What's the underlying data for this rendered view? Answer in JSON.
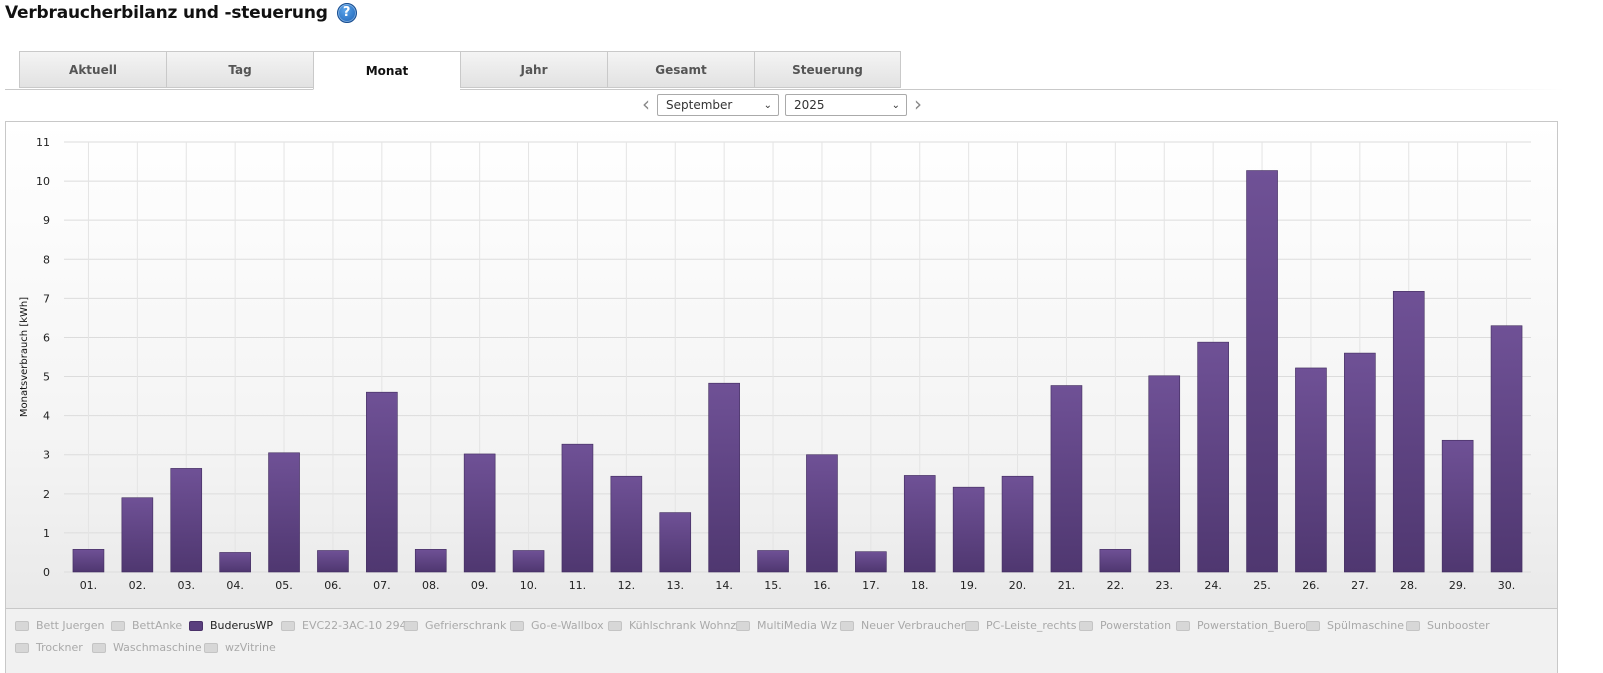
{
  "header": {
    "title": "Verbraucherbilanz und -steuerung",
    "help_symbol": "?"
  },
  "tabs": [
    {
      "label": "Aktuell",
      "active": false
    },
    {
      "label": "Tag",
      "active": false
    },
    {
      "label": "Monat",
      "active": true
    },
    {
      "label": "Jahr",
      "active": false
    },
    {
      "label": "Gesamt",
      "active": false
    },
    {
      "label": "Steuerung",
      "active": false
    }
  ],
  "period": {
    "prev_symbol": "‹",
    "next_symbol": "›",
    "month": "September",
    "year": "2025",
    "caret": "⌄"
  },
  "chart_data": {
    "type": "bar",
    "ylabel": "Monatsverbrauch [kWh]",
    "xlabel": "",
    "ylim": [
      0,
      11
    ],
    "y_ticks": [
      "0",
      "1",
      "2",
      "3",
      "4",
      "5",
      "6",
      "7",
      "8",
      "9",
      "10",
      "11"
    ],
    "grid": true,
    "bar_color": "#5a3f7e",
    "categories": [
      "01.",
      "02.",
      "03.",
      "04.",
      "05.",
      "06.",
      "07.",
      "08.",
      "09.",
      "10.",
      "11.",
      "12.",
      "13.",
      "14.",
      "15.",
      "16.",
      "17.",
      "18.",
      "19.",
      "20.",
      "21.",
      "22.",
      "23.",
      "24.",
      "25.",
      "26.",
      "27.",
      "28.",
      "29.",
      "30."
    ],
    "series": [
      {
        "name": "BuderusWP",
        "values": [
          0.58,
          1.9,
          2.65,
          0.5,
          3.05,
          0.55,
          4.6,
          0.58,
          3.02,
          0.55,
          3.27,
          2.45,
          1.52,
          4.83,
          0.55,
          3.0,
          0.52,
          2.47,
          2.17,
          2.45,
          4.77,
          0.58,
          5.02,
          5.88,
          10.27,
          5.22,
          5.6,
          7.18,
          3.37,
          6.3
        ]
      }
    ],
    "legend": [
      {
        "label": "Bett Juergen",
        "active": false
      },
      {
        "label": "BettAnke",
        "active": false
      },
      {
        "label": "BuderusWP",
        "active": true
      },
      {
        "label": "EVC22-3AC-10 294",
        "active": false
      },
      {
        "label": "Gefrierschrank",
        "active": false
      },
      {
        "label": "Go-e-Wallbox",
        "active": false
      },
      {
        "label": "Kühlschrank Wohnz",
        "active": false
      },
      {
        "label": "MultiMedia Wz",
        "active": false
      },
      {
        "label": "Neuer Verbraucher",
        "active": false
      },
      {
        "label": "PC-Leiste_rechts",
        "active": false
      },
      {
        "label": "Powerstation",
        "active": false
      },
      {
        "label": "Powerstation_Buero",
        "active": false
      },
      {
        "label": "Spülmaschine",
        "active": false
      },
      {
        "label": "Sunbooster",
        "active": false
      },
      {
        "label": "Trockner",
        "active": false
      },
      {
        "label": "Waschmaschine",
        "active": false
      },
      {
        "label": "wzVitrine",
        "active": false
      }
    ]
  }
}
